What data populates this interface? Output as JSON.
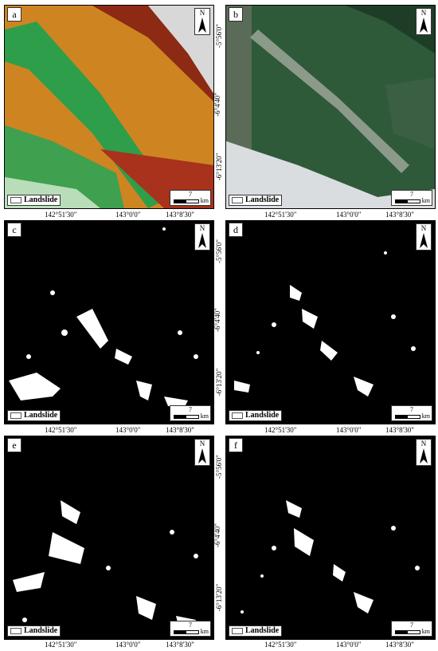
{
  "panels": [
    {
      "id": "a",
      "label": "a",
      "type": "elevation"
    },
    {
      "id": "b",
      "label": "b",
      "type": "satellite"
    },
    {
      "id": "c",
      "label": "c",
      "type": "binary"
    },
    {
      "id": "d",
      "label": "d",
      "type": "binary"
    },
    {
      "id": "e",
      "label": "e",
      "type": "binary"
    },
    {
      "id": "f",
      "label": "f",
      "type": "binary"
    }
  ],
  "north_label": "N",
  "legend_label": "Landslide",
  "scale": {
    "value": "7",
    "unit": "km"
  },
  "lat_ticks": [
    "-5°56'0\"",
    "-6°4'40\"",
    "-6°13'20\""
  ],
  "lon_ticks": [
    "142°51'30\"",
    "143°0'0\"",
    "143°8'30\""
  ],
  "colors": {
    "elev_low": "#2e9e4a",
    "elev_mid": "#e3a81f",
    "elev_high": "#8c2a14",
    "elev_peak": "#d8d8d8",
    "binary_bg": "#000000",
    "landslide": "#ffffff"
  }
}
